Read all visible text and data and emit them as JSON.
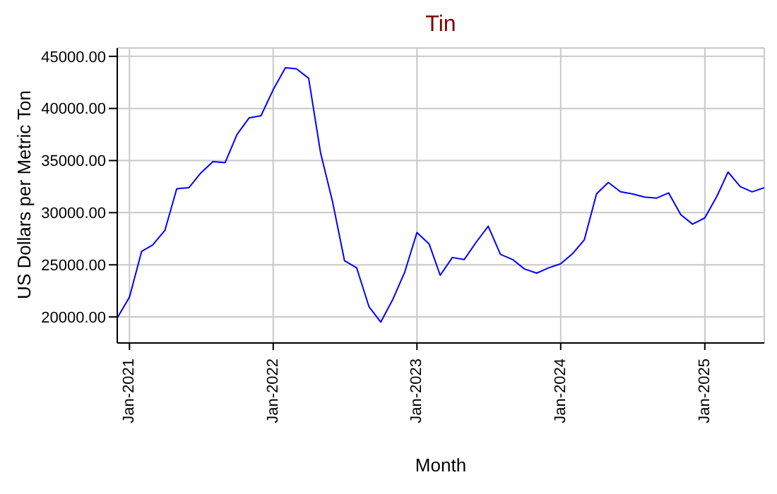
{
  "chart_data": {
    "type": "line",
    "title": "Tin",
    "xlabel": "Month",
    "ylabel": "US Dollars per Metric Ton",
    "x": [
      "2020-12",
      "2021-01",
      "2021-02",
      "2021-03",
      "2021-04",
      "2021-05",
      "2021-06",
      "2021-07",
      "2021-08",
      "2021-09",
      "2021-10",
      "2021-11",
      "2021-12",
      "2022-01",
      "2022-02",
      "2022-03",
      "2022-04",
      "2022-05",
      "2022-06",
      "2022-07",
      "2022-08",
      "2022-09",
      "2022-10",
      "2022-11",
      "2022-12",
      "2023-01",
      "2023-02",
      "2023-03",
      "2023-04",
      "2023-05",
      "2023-06",
      "2023-07",
      "2023-08",
      "2023-09",
      "2023-10",
      "2023-11",
      "2023-12",
      "2024-01",
      "2024-02",
      "2024-03",
      "2024-04",
      "2024-05",
      "2024-06",
      "2024-07",
      "2024-08",
      "2024-09",
      "2024-10",
      "2024-11",
      "2024-12",
      "2025-01",
      "2025-02",
      "2025-03",
      "2025-04",
      "2025-05",
      "2025-06"
    ],
    "series": [
      {
        "color": "#0000ff",
        "values": [
          19900,
          21900,
          26300,
          26900,
          28300,
          32300,
          32400,
          33800,
          34900,
          34800,
          37500,
          39100,
          39300,
          41800,
          43900,
          43800,
          42900,
          35800,
          31000,
          25400,
          24700,
          21000,
          19500,
          21700,
          24300,
          28100,
          27000,
          24000,
          25700,
          25500,
          27200,
          28700,
          26000,
          25500,
          24600,
          24200,
          24700,
          25100,
          26100,
          27400,
          31800,
          32900,
          32000,
          31800,
          31500,
          31400,
          31900,
          29800,
          28900,
          29500,
          31600,
          33900,
          32500,
          32000,
          32400
        ]
      }
    ],
    "xlim": [
      "2020-12",
      "2025-06"
    ],
    "xticks": [
      {
        "value": "2021-01",
        "label": "Jan-2021"
      },
      {
        "value": "2022-01",
        "label": "Jan-2022"
      },
      {
        "value": "2023-01",
        "label": "Jan-2023"
      },
      {
        "value": "2024-01",
        "label": "Jan-2024"
      },
      {
        "value": "2025-01",
        "label": "Jan-2025"
      }
    ],
    "ylim": [
      17500,
      45800
    ],
    "yticks": [
      {
        "value": 20000,
        "label": "20000.00"
      },
      {
        "value": 25000,
        "label": "25000.00"
      },
      {
        "value": 30000,
        "label": "30000.00"
      },
      {
        "value": 35000,
        "label": "35000.00"
      },
      {
        "value": 40000,
        "label": "40000.00"
      },
      {
        "value": 45000,
        "label": "45000.00"
      }
    ],
    "grid": true,
    "marker": "none",
    "line_style": "solid"
  }
}
